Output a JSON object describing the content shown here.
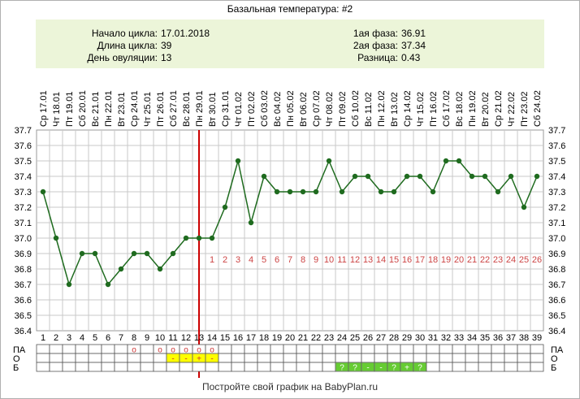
{
  "title": "Базальная температура: #2",
  "info": {
    "cycle_start_label": "Начало цикла:",
    "cycle_start_value": "17.01.2018",
    "cycle_length_label": "Длина цикла:",
    "cycle_length_value": "39",
    "ovulation_day_label": "День овуляции:",
    "ovulation_day_value": "13",
    "phase1_label": "1ая фаза:",
    "phase1_value": "36.91",
    "phase2_label": "2ая фаза:",
    "phase2_value": "37.34",
    "difference_label": "Разница:",
    "difference_value": "0.43"
  },
  "footer": "Постройте свой график на BabyPlan.ru",
  "chart_data": {
    "type": "line",
    "x": [
      1,
      2,
      3,
      4,
      5,
      6,
      7,
      8,
      9,
      10,
      11,
      12,
      13,
      14,
      15,
      16,
      17,
      18,
      19,
      20,
      21,
      22,
      23,
      24,
      25,
      26,
      27,
      28,
      29,
      30,
      31,
      32,
      33,
      34,
      35,
      36,
      37,
      38,
      39
    ],
    "date_labels": [
      "Ср 17.01",
      "Чт 18.01",
      "Пт 19.01",
      "Сб 20.01",
      "Вс 21.01",
      "Пн 22.01",
      "Вт 23.01",
      "Ср 24.01",
      "Чт 25.01",
      "Пт 26.01",
      "Сб 27.01",
      "Вс 28.01",
      "Пн 29.01",
      "Вт 30.01",
      "Ср 31.01",
      "Чт 01.02",
      "Пт 02.02",
      "Сб 03.02",
      "Вс 04.02",
      "Пн 05.02",
      "Вт 06.02",
      "Ср 07.02",
      "Чт 08.02",
      "Пт 09.02",
      "Сб 10.02",
      "Вс 11.02",
      "Пн 12.02",
      "Вт 13.02",
      "Ср 14.02",
      "Чт 15.02",
      "Пт 16.02",
      "Сб 17.02",
      "Вс 18.02",
      "Пн 19.02",
      "Вт 20.02",
      "Ср 21.02",
      "Чт 22.02",
      "Пт 23.02",
      "Сб 24.02"
    ],
    "values": [
      37.3,
      37.0,
      36.7,
      36.9,
      36.9,
      36.7,
      36.8,
      36.9,
      36.9,
      36.8,
      36.9,
      37.0,
      37.0,
      37.0,
      37.2,
      37.5,
      37.1,
      37.4,
      37.3,
      37.3,
      37.3,
      37.3,
      37.5,
      37.3,
      37.4,
      37.4,
      37.3,
      37.3,
      37.4,
      37.4,
      37.3,
      37.5,
      37.5,
      37.4,
      37.4,
      37.3,
      37.4,
      37.2,
      37.4
    ],
    "y_ticks": [
      "37.7",
      "37.6",
      "37.5",
      "37.4",
      "37.3",
      "37.2",
      "37.1",
      "37.0",
      "36.9",
      "36.8",
      "36.7",
      "36.6",
      "36.5",
      "36.4"
    ],
    "ylim": [
      36.4,
      37.7
    ],
    "ovulation_day": 13,
    "luteal_labels": [
      "1",
      "2",
      "3",
      "4",
      "5",
      "6",
      "7",
      "8",
      "9",
      "10",
      "11",
      "12",
      "13",
      "14",
      "15",
      "16",
      "17",
      "18",
      "19",
      "20",
      "21",
      "22",
      "23",
      "24",
      "25",
      "26"
    ],
    "line_color": "#1f6b1f",
    "ovulation_line_color": "#cc0000",
    "luteal_label_color": "#cc4444",
    "grid": true
  },
  "rows": {
    "labels": [
      "ПА",
      "О",
      "Б"
    ],
    "pa": [
      {
        "day": 8,
        "mark": "o"
      },
      {
        "day": 10,
        "mark": "o"
      },
      {
        "day": 11,
        "mark": "o"
      },
      {
        "day": 12,
        "mark": "o"
      },
      {
        "day": 13,
        "mark": "o"
      },
      {
        "day": 14,
        "mark": "o"
      }
    ],
    "o": [
      {
        "day": 11,
        "mark": "-"
      },
      {
        "day": 12,
        "mark": "-"
      },
      {
        "day": 13,
        "mark": "+"
      },
      {
        "day": 14,
        "mark": "-"
      }
    ],
    "b": [
      {
        "day": 24,
        "mark": "?"
      },
      {
        "day": 25,
        "mark": "?"
      },
      {
        "day": 26,
        "mark": "-"
      },
      {
        "day": 27,
        "mark": "-"
      },
      {
        "day": 28,
        "mark": "?"
      },
      {
        "day": 29,
        "mark": "+"
      },
      {
        "day": 30,
        "mark": "?"
      }
    ],
    "o_fill": "#ffff00",
    "b_fill": "#66cc33"
  }
}
